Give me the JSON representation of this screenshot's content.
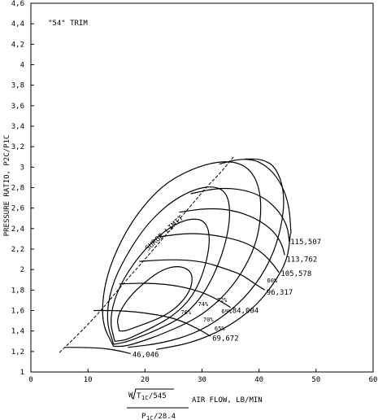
{
  "chart_data": {
    "type": "line",
    "title": "",
    "annotation": "\"54\" TRIM",
    "ylabel": "PRESSURE RATIO, P2C/P1C",
    "xlabel": "AIR FLOW, LB/MIN",
    "xlabel_formula": {
      "prefix": "W",
      "numerator": "T",
      "numerator_sub": "1C",
      "numerator_suffix": "/545",
      "denominator": "P",
      "denominator_sub": "1C",
      "denominator_suffix": "/28.4"
    },
    "xlim": [
      0,
      60
    ],
    "ylim": [
      1,
      4.6
    ],
    "xticks": [
      0,
      10,
      20,
      30,
      40,
      50,
      60
    ],
    "yticks": [
      1,
      1.2,
      1.4,
      1.6,
      1.8,
      2,
      2.2,
      2.4,
      2.6,
      2.8,
      3,
      3.2,
      3.4,
      3.6,
      3.8,
      4,
      4.2,
      4.4,
      4.6
    ],
    "ytick_labels": [
      "1",
      "1,2",
      "1,4",
      "1,6",
      "1,8",
      "2",
      "2,2",
      "2,4",
      "2,6",
      "2,8",
      "3",
      "3,2",
      "3,4",
      "3,6",
      "3,8",
      "4",
      "4,2",
      "4,4",
      "4,6"
    ],
    "grid": false,
    "surge_limit": {
      "label": "SURGE LIMIT",
      "points": [
        [
          5,
          1.19
        ],
        [
          8,
          1.35
        ],
        [
          12,
          1.58
        ],
        [
          16,
          1.85
        ],
        [
          20,
          2.1
        ],
        [
          24,
          2.36
        ],
        [
          28,
          2.62
        ],
        [
          31,
          2.82
        ],
        [
          33.5,
          2.96
        ],
        [
          35.5,
          3.1
        ]
      ]
    },
    "speed_lines": [
      {
        "name": "46,046",
        "points": [
          [
            6,
            1.24
          ],
          [
            10,
            1.24
          ],
          [
            14,
            1.225
          ],
          [
            17.5,
            1.18
          ]
        ]
      },
      {
        "name": "69,672",
        "points": [
          [
            11,
            1.6
          ],
          [
            16,
            1.6
          ],
          [
            21,
            1.57
          ],
          [
            25.5,
            1.52
          ],
          [
            29,
            1.43
          ],
          [
            31.5,
            1.35
          ]
        ]
      },
      {
        "name": "84,004",
        "points": [
          [
            15.5,
            1.86
          ],
          [
            21,
            1.87
          ],
          [
            26,
            1.84
          ],
          [
            30,
            1.78
          ],
          [
            33,
            1.7
          ],
          [
            35,
            1.63
          ]
        ]
      },
      {
        "name": "96,317",
        "points": [
          [
            19,
            2.08
          ],
          [
            25,
            2.1
          ],
          [
            30,
            2.08
          ],
          [
            34,
            2.01
          ],
          [
            37,
            1.95
          ],
          [
            39,
            1.87
          ],
          [
            41,
            1.8
          ]
        ]
      },
      {
        "name": "105,578",
        "points": [
          [
            22.5,
            2.32
          ],
          [
            28,
            2.36
          ],
          [
            33,
            2.33
          ],
          [
            37.5,
            2.27
          ],
          [
            40.5,
            2.17
          ],
          [
            42.5,
            2.05
          ],
          [
            43.5,
            1.97
          ]
        ]
      },
      {
        "name": "113,762",
        "points": [
          [
            26,
            2.56
          ],
          [
            31,
            2.6
          ],
          [
            35.5,
            2.58
          ],
          [
            39.5,
            2.5
          ],
          [
            42.5,
            2.38
          ],
          [
            44,
            2.25
          ],
          [
            44.5,
            2.14
          ]
        ]
      },
      {
        "name": "115,507",
        "points": [
          [
            28,
            2.74
          ],
          [
            33,
            2.8
          ],
          [
            37.5,
            2.78
          ],
          [
            41,
            2.7
          ],
          [
            43.5,
            2.57
          ],
          [
            45,
            2.42
          ],
          [
            45.3,
            2.27
          ]
        ]
      },
      {
        "name": "",
        "points": [
          [
            33,
            3.03
          ],
          [
            36.5,
            3.08
          ],
          [
            39.5,
            3.07
          ],
          [
            42,
            2.98
          ],
          [
            44,
            2.83
          ],
          [
            45.3,
            2.62
          ],
          [
            45.6,
            2.35
          ]
        ]
      }
    ],
    "efficiency_islands": [
      {
        "name": "76%",
        "points": [
          [
            15.5,
            1.4
          ],
          [
            15,
            1.53
          ],
          [
            17,
            1.72
          ],
          [
            20,
            1.88
          ],
          [
            23,
            2.0
          ],
          [
            26,
            2.04
          ],
          [
            28.3,
            1.98
          ],
          [
            28.2,
            1.82
          ],
          [
            26.2,
            1.66
          ],
          [
            23.5,
            1.55
          ],
          [
            20.5,
            1.48
          ],
          [
            18,
            1.43
          ],
          [
            16.5,
            1.4
          ],
          [
            15.5,
            1.4
          ]
        ]
      },
      {
        "name": "74%",
        "points": [
          [
            14.7,
            1.3
          ],
          [
            13.8,
            1.5
          ],
          [
            15,
            1.78
          ],
          [
            17.7,
            2.04
          ],
          [
            21,
            2.26
          ],
          [
            24.5,
            2.42
          ],
          [
            27.8,
            2.5
          ],
          [
            30.6,
            2.48
          ],
          [
            31.5,
            2.3
          ],
          [
            30.5,
            2.0
          ],
          [
            28.3,
            1.73
          ],
          [
            25,
            1.55
          ],
          [
            21.5,
            1.44
          ],
          [
            18.5,
            1.36
          ],
          [
            16.5,
            1.31
          ],
          [
            14.7,
            1.3
          ]
        ]
      },
      {
        "name": "72%",
        "points": [
          [
            14.5,
            1.27
          ],
          [
            13.2,
            1.5
          ],
          [
            14,
            1.82
          ],
          [
            16.5,
            2.12
          ],
          [
            20,
            2.42
          ],
          [
            24,
            2.64
          ],
          [
            28.3,
            2.78
          ],
          [
            32.2,
            2.82
          ],
          [
            34.5,
            2.74
          ],
          [
            35,
            2.52
          ],
          [
            34,
            2.22
          ],
          [
            32,
            1.93
          ],
          [
            29.5,
            1.7
          ],
          [
            26.4,
            1.53
          ],
          [
            22.5,
            1.42
          ],
          [
            19,
            1.34
          ],
          [
            16.5,
            1.29
          ],
          [
            14.5,
            1.27
          ]
        ]
      },
      {
        "name": "70%",
        "points": [
          [
            14.5,
            1.25
          ],
          [
            12.4,
            1.48
          ],
          [
            12.8,
            1.84
          ],
          [
            15,
            2.2
          ],
          [
            18.5,
            2.54
          ],
          [
            23,
            2.82
          ],
          [
            28,
            2.98
          ],
          [
            33,
            3.06
          ],
          [
            37,
            3.04
          ],
          [
            39.5,
            2.9
          ],
          [
            40.5,
            2.64
          ],
          [
            39.8,
            2.3
          ],
          [
            37.6,
            2.02
          ],
          [
            34.5,
            1.78
          ],
          [
            31,
            1.6
          ],
          [
            27.5,
            1.48
          ],
          [
            23,
            1.37
          ],
          [
            19,
            1.29
          ],
          [
            16.5,
            1.25
          ],
          [
            14.5,
            1.25
          ]
        ]
      },
      {
        "name": "65%",
        "points": [
          [
            17,
            1.24
          ],
          [
            23,
            1.28
          ],
          [
            29,
            1.38
          ],
          [
            34,
            1.55
          ],
          [
            38.5,
            1.78
          ],
          [
            42,
            2.08
          ],
          [
            44,
            2.42
          ],
          [
            44.5,
            2.75
          ],
          [
            43,
            3.0
          ],
          [
            40.5,
            3.08
          ],
          [
            37.5,
            3.08
          ]
        ]
      },
      {
        "name": "60%",
        "points": [
          [
            22,
            1.22
          ],
          [
            28,
            1.28
          ],
          [
            34,
            1.42
          ],
          [
            39,
            1.62
          ],
          [
            42.5,
            1.85
          ],
          [
            45,
            2.1
          ],
          [
            45.5,
            2.35
          ]
        ]
      }
    ],
    "speed_label_positions": [
      {
        "name": "115,507",
        "x": 45.5,
        "y": 2.27
      },
      {
        "name": "113,762",
        "x": 44.8,
        "y": 2.1
      },
      {
        "name": "105,578",
        "x": 43.8,
        "y": 1.96
      },
      {
        "name": "96,317",
        "x": 41.3,
        "y": 1.78
      },
      {
        "name": "84,004",
        "x": 35.3,
        "y": 1.6
      },
      {
        "name": "69,672",
        "x": 31.8,
        "y": 1.33
      },
      {
        "name": "46,046",
        "x": 17.8,
        "y": 1.17
      }
    ],
    "efficiency_label_positions": [
      {
        "name": "76%",
        "x": 26.3,
        "y": 1.58
      },
      {
        "name": "74%",
        "x": 29.3,
        "y": 1.66
      },
      {
        "name": "72%",
        "x": 32.6,
        "y": 1.7
      },
      {
        "name": "70%",
        "x": 30.2,
        "y": 1.51
      },
      {
        "name": "69%",
        "x": 33.4,
        "y": 1.59
      },
      {
        "name": "65%",
        "x": 32.2,
        "y": 1.42
      },
      {
        "name": "60%",
        "x": 41.4,
        "y": 1.89
      }
    ]
  },
  "colors": {
    "line": "#000000",
    "background": "#ffffff"
  }
}
